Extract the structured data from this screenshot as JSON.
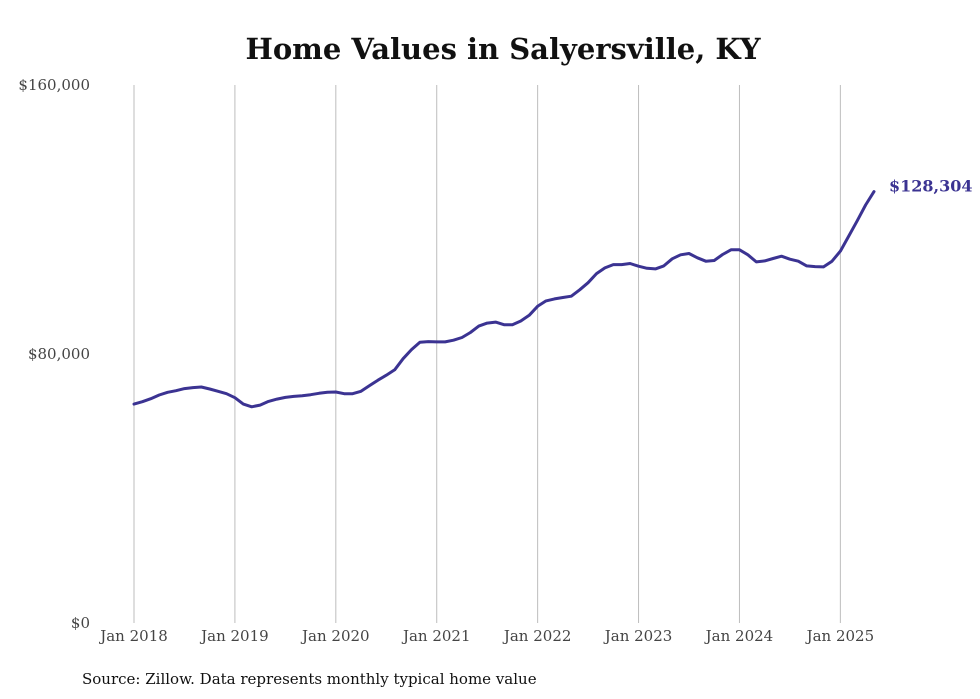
{
  "chart_data": {
    "type": "line",
    "title": "Home Values in Salyersville, KY",
    "xlabel": "",
    "ylabel": "",
    "ylim": [
      0,
      160000
    ],
    "xlim": [
      "2018-01",
      "2025-05"
    ],
    "grid": "vertical",
    "y_ticks": [
      {
        "value": 0,
        "label": "$0"
      },
      {
        "value": 80000,
        "label": "$80,000"
      },
      {
        "value": 160000,
        "label": "$160,000"
      }
    ],
    "x_ticks": [
      {
        "date": "2018-01",
        "label": "Jan 2018"
      },
      {
        "date": "2019-01",
        "label": "Jan 2019"
      },
      {
        "date": "2020-01",
        "label": "Jan 2020"
      },
      {
        "date": "2021-01",
        "label": "Jan 2021"
      },
      {
        "date": "2022-01",
        "label": "Jan 2022"
      },
      {
        "date": "2023-01",
        "label": "Jan 2023"
      },
      {
        "date": "2024-01",
        "label": "Jan 2024"
      },
      {
        "date": "2025-01",
        "label": "Jan 2025"
      }
    ],
    "end_label": "$128,304",
    "source": "Source: Zillow. Data represents monthly typical home value",
    "series": [
      {
        "color": "#3b3392",
        "x": [
          "2018-01",
          "2018-02",
          "2018-03",
          "2018-04",
          "2018-05",
          "2018-06",
          "2018-07",
          "2018-08",
          "2018-09",
          "2018-10",
          "2018-11",
          "2018-12",
          "2019-01",
          "2019-02",
          "2019-03",
          "2019-04",
          "2019-05",
          "2019-06",
          "2019-07",
          "2019-08",
          "2019-09",
          "2019-10",
          "2019-11",
          "2019-12",
          "2020-01",
          "2020-02",
          "2020-03",
          "2020-04",
          "2020-05",
          "2020-06",
          "2020-07",
          "2020-08",
          "2020-09",
          "2020-10",
          "2020-11",
          "2020-12",
          "2021-01",
          "2021-02",
          "2021-03",
          "2021-04",
          "2021-05",
          "2021-06",
          "2021-07",
          "2021-08",
          "2021-09",
          "2021-10",
          "2021-11",
          "2021-12",
          "2022-01",
          "2022-02",
          "2022-03",
          "2022-04",
          "2022-05",
          "2022-06",
          "2022-07",
          "2022-08",
          "2022-09",
          "2022-10",
          "2022-11",
          "2022-12",
          "2023-01",
          "2023-02",
          "2023-03",
          "2023-04",
          "2023-05",
          "2023-06",
          "2023-07",
          "2023-08",
          "2023-09",
          "2023-10",
          "2023-11",
          "2023-12",
          "2024-01",
          "2024-02",
          "2024-03",
          "2024-04",
          "2024-05",
          "2024-06",
          "2024-07",
          "2024-08",
          "2024-09",
          "2024-10",
          "2024-11",
          "2024-12",
          "2025-01",
          "2025-02",
          "2025-03",
          "2025-04",
          "2025-05"
        ],
        "values": [
          65100,
          65800,
          66700,
          67800,
          68600,
          69100,
          69700,
          70000,
          70200,
          69600,
          68900,
          68200,
          67000,
          65100,
          64300,
          64800,
          65900,
          66600,
          67100,
          67400,
          67600,
          67900,
          68300,
          68600,
          68700,
          68200,
          68200,
          68900,
          70600,
          72200,
          73700,
          75300,
          78600,
          81300,
          83500,
          83700,
          83600,
          83600,
          84100,
          84900,
          86400,
          88300,
          89200,
          89500,
          88700,
          88700,
          89800,
          91500,
          94200,
          95800,
          96400,
          96800,
          97200,
          99100,
          101200,
          103900,
          105600,
          106600,
          106600,
          106900,
          106100,
          105500,
          105300,
          106200,
          108300,
          109500,
          109900,
          108600,
          107600,
          107800,
          109600,
          111000,
          111000,
          109500,
          107400,
          107700,
          108400,
          109100,
          108200,
          107600,
          106200,
          106000,
          105900,
          107600,
          110600,
          115100,
          119600,
          124300,
          128304
        ]
      }
    ]
  }
}
